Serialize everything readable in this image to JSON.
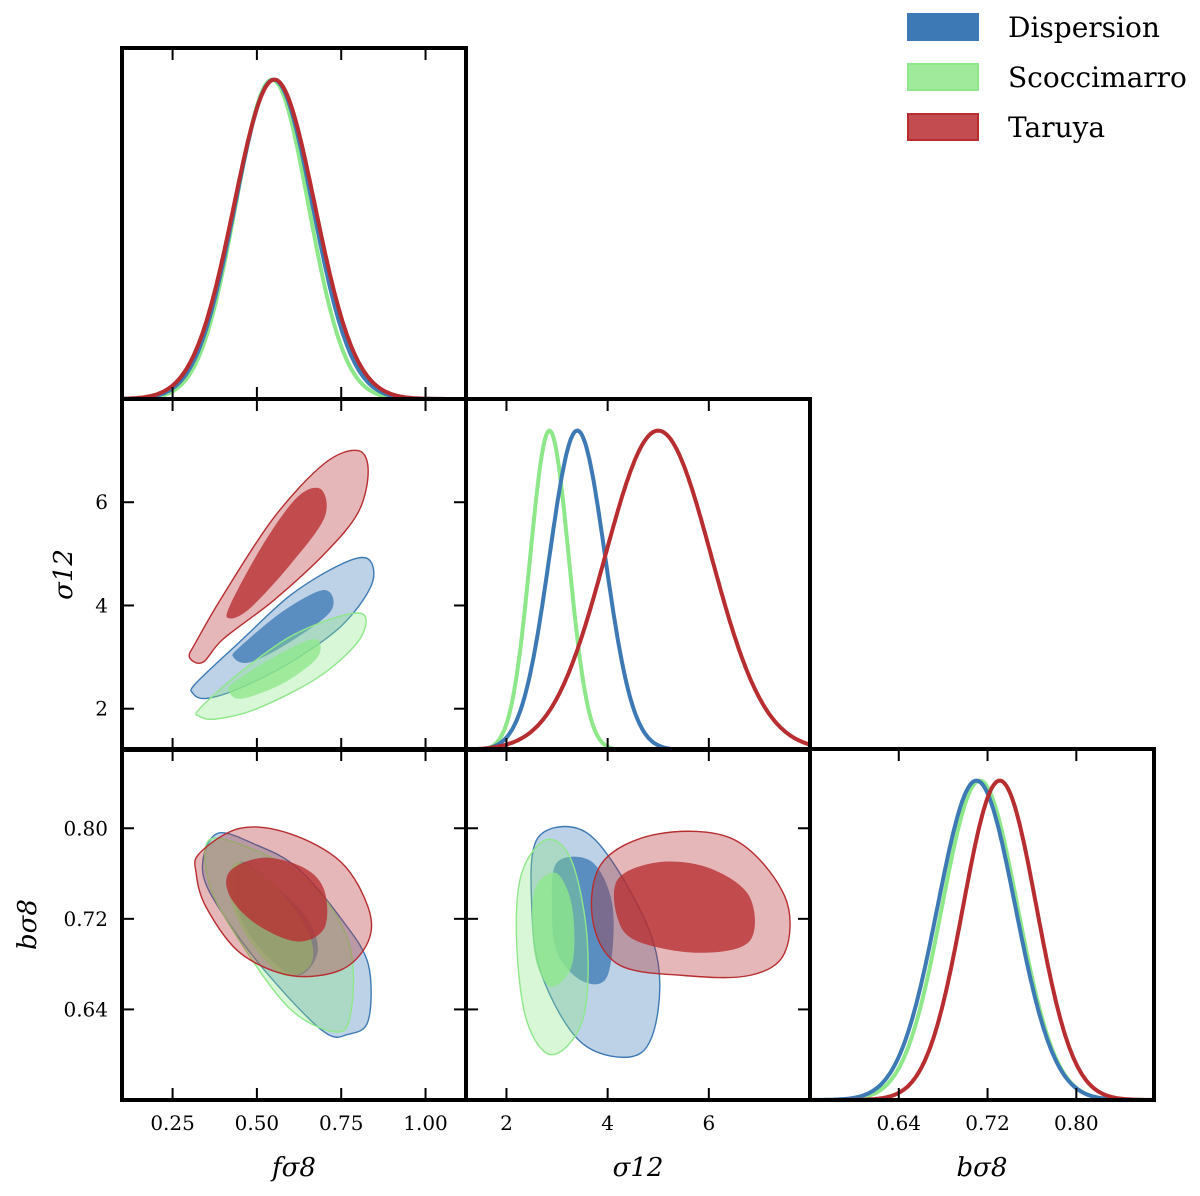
{
  "chart_data": {
    "type": "corner",
    "colors": {
      "Dispersion": "#3d7ab5",
      "Scoccimarro": "#8ee88a",
      "Taruya": "#b72d30"
    },
    "legend": {
      "placement": "top-right",
      "entries": [
        "Dispersion",
        "Scoccimarro",
        "Taruya"
      ]
    },
    "parameters": [
      {
        "key": "fs8",
        "label": "fσ8",
        "range": [
          0.1,
          1.12
        ],
        "ticks": [
          0.25,
          0.5,
          0.75,
          1.0
        ],
        "tick_labels": [
          "0.25",
          "0.50",
          "0.75",
          "1.00"
        ]
      },
      {
        "key": "s12",
        "label": "σ12",
        "range": [
          1.2,
          8.0
        ],
        "ticks": [
          2,
          4,
          6
        ],
        "tick_labels": [
          "2",
          "4",
          "6"
        ]
      },
      {
        "key": "bs8",
        "label": "bσ8",
        "range": [
          0.56,
          0.87
        ],
        "ticks": [
          0.64,
          0.72,
          0.8
        ],
        "tick_labels": [
          "0.64",
          "0.72",
          "0.80"
        ]
      }
    ],
    "marginals": {
      "fs8": [
        {
          "name": "Dispersion",
          "mean": 0.55,
          "sd": 0.115
        },
        {
          "name": "Scoccimarro",
          "mean": 0.545,
          "sd": 0.108
        },
        {
          "name": "Taruya",
          "mean": 0.552,
          "sd": 0.12
        }
      ],
      "s12": [
        {
          "name": "Dispersion",
          "mean": 3.4,
          "sd": 0.55
        },
        {
          "name": "Scoccimarro",
          "mean": 2.85,
          "sd": 0.38
        },
        {
          "name": "Taruya",
          "mean": 5.0,
          "sd": 1.05
        }
      ],
      "bs8": [
        {
          "name": "Dispersion",
          "mean": 0.71,
          "sd": 0.035
        },
        {
          "name": "Scoccimarro",
          "mean": 0.713,
          "sd": 0.034
        },
        {
          "name": "Taruya",
          "mean": 0.731,
          "sd": 0.033
        }
      ]
    },
    "contours": [
      {
        "panel": "s12_vs_fs8",
        "name": "Taruya",
        "level": "95%",
        "points": [
          [
            0.32,
            3.3
          ],
          [
            0.4,
            4.2
          ],
          [
            0.55,
            5.7
          ],
          [
            0.7,
            6.75
          ],
          [
            0.8,
            7.0
          ],
          [
            0.83,
            6.6
          ],
          [
            0.8,
            5.8
          ],
          [
            0.7,
            5.0
          ],
          [
            0.55,
            4.1
          ],
          [
            0.4,
            3.35
          ],
          [
            0.34,
            2.9
          ],
          [
            0.3,
            3.0
          ]
        ]
      },
      {
        "panel": "s12_vs_fs8",
        "name": "Taruya",
        "level": "68%",
        "points": [
          [
            0.42,
            4.0
          ],
          [
            0.52,
            5.2
          ],
          [
            0.62,
            6.1
          ],
          [
            0.69,
            6.25
          ],
          [
            0.7,
            5.7
          ],
          [
            0.6,
            4.8
          ],
          [
            0.48,
            3.95
          ],
          [
            0.42,
            3.75
          ]
        ]
      },
      {
        "panel": "s12_vs_fs8",
        "name": "Dispersion",
        "level": "95%",
        "points": [
          [
            0.32,
            2.5
          ],
          [
            0.45,
            3.3
          ],
          [
            0.6,
            4.2
          ],
          [
            0.75,
            4.8
          ],
          [
            0.83,
            4.9
          ],
          [
            0.84,
            4.4
          ],
          [
            0.75,
            3.6
          ],
          [
            0.6,
            2.9
          ],
          [
            0.45,
            2.4
          ],
          [
            0.35,
            2.2
          ],
          [
            0.31,
            2.3
          ]
        ]
      },
      {
        "panel": "s12_vs_fs8",
        "name": "Dispersion",
        "level": "68%",
        "points": [
          [
            0.45,
            3.2
          ],
          [
            0.58,
            3.9
          ],
          [
            0.7,
            4.3
          ],
          [
            0.72,
            3.9
          ],
          [
            0.6,
            3.3
          ],
          [
            0.48,
            2.9
          ],
          [
            0.43,
            3.0
          ]
        ]
      },
      {
        "panel": "s12_vs_fs8",
        "name": "Scoccimarro",
        "level": "95%",
        "points": [
          [
            0.33,
            2.0
          ],
          [
            0.45,
            2.7
          ],
          [
            0.6,
            3.4
          ],
          [
            0.75,
            3.8
          ],
          [
            0.82,
            3.8
          ],
          [
            0.8,
            3.3
          ],
          [
            0.68,
            2.6
          ],
          [
            0.5,
            2.0
          ],
          [
            0.38,
            1.8
          ],
          [
            0.33,
            1.85
          ]
        ]
      },
      {
        "panel": "s12_vs_fs8",
        "name": "Scoccimarro",
        "level": "68%",
        "points": [
          [
            0.43,
            2.5
          ],
          [
            0.55,
            3.0
          ],
          [
            0.67,
            3.35
          ],
          [
            0.68,
            3.0
          ],
          [
            0.58,
            2.5
          ],
          [
            0.46,
            2.2
          ],
          [
            0.42,
            2.3
          ]
        ]
      },
      {
        "panel": "bs8_vs_fs8",
        "name": "Dispersion",
        "level": "95%",
        "points": [
          [
            0.38,
            0.795
          ],
          [
            0.5,
            0.785
          ],
          [
            0.62,
            0.765
          ],
          [
            0.75,
            0.72
          ],
          [
            0.83,
            0.68
          ],
          [
            0.83,
            0.63
          ],
          [
            0.77,
            0.618
          ],
          [
            0.7,
            0.62
          ],
          [
            0.55,
            0.665
          ],
          [
            0.42,
            0.715
          ],
          [
            0.34,
            0.76
          ]
        ]
      },
      {
        "panel": "bs8_vs_fs8",
        "name": "Dispersion",
        "level": "68%",
        "points": [
          [
            0.45,
            0.77
          ],
          [
            0.55,
            0.75
          ],
          [
            0.65,
            0.72
          ],
          [
            0.68,
            0.69
          ],
          [
            0.62,
            0.67
          ],
          [
            0.52,
            0.69
          ],
          [
            0.44,
            0.73
          ]
        ]
      },
      {
        "panel": "bs8_vs_fs8",
        "name": "Scoccimarro",
        "level": "95%",
        "points": [
          [
            0.36,
            0.79
          ],
          [
            0.5,
            0.78
          ],
          [
            0.62,
            0.76
          ],
          [
            0.72,
            0.73
          ],
          [
            0.78,
            0.69
          ],
          [
            0.78,
            0.64
          ],
          [
            0.74,
            0.62
          ],
          [
            0.6,
            0.64
          ],
          [
            0.45,
            0.7
          ],
          [
            0.36,
            0.75
          ]
        ]
      },
      {
        "panel": "bs8_vs_fs8",
        "name": "Scoccimarro",
        "level": "68%",
        "points": [
          [
            0.44,
            0.77
          ],
          [
            0.55,
            0.75
          ],
          [
            0.65,
            0.71
          ],
          [
            0.66,
            0.68
          ],
          [
            0.58,
            0.67
          ],
          [
            0.48,
            0.7
          ],
          [
            0.42,
            0.74
          ]
        ]
      },
      {
        "panel": "bs8_vs_fs8",
        "name": "Taruya",
        "level": "95%",
        "points": [
          [
            0.33,
            0.778
          ],
          [
            0.45,
            0.8
          ],
          [
            0.6,
            0.795
          ],
          [
            0.75,
            0.77
          ],
          [
            0.83,
            0.73
          ],
          [
            0.83,
            0.7
          ],
          [
            0.75,
            0.675
          ],
          [
            0.6,
            0.67
          ],
          [
            0.45,
            0.69
          ],
          [
            0.35,
            0.73
          ],
          [
            0.32,
            0.76
          ]
        ]
      },
      {
        "panel": "bs8_vs_fs8",
        "name": "Taruya",
        "level": "68%",
        "points": [
          [
            0.42,
            0.762
          ],
          [
            0.52,
            0.774
          ],
          [
            0.64,
            0.765
          ],
          [
            0.7,
            0.745
          ],
          [
            0.7,
            0.712
          ],
          [
            0.62,
            0.7
          ],
          [
            0.5,
            0.715
          ],
          [
            0.42,
            0.74
          ]
        ]
      },
      {
        "panel": "bs8_vs_s12",
        "name": "Dispersion",
        "level": "95%",
        "points": [
          [
            2.6,
            0.79
          ],
          [
            3.4,
            0.8
          ],
          [
            4.1,
            0.77
          ],
          [
            4.9,
            0.7
          ],
          [
            5.0,
            0.64
          ],
          [
            4.6,
            0.6
          ],
          [
            3.5,
            0.61
          ],
          [
            2.7,
            0.67
          ],
          [
            2.5,
            0.73
          ]
        ]
      },
      {
        "panel": "bs8_vs_s12",
        "name": "Dispersion",
        "level": "68%",
        "points": [
          [
            3.0,
            0.77
          ],
          [
            3.7,
            0.77
          ],
          [
            4.1,
            0.73
          ],
          [
            4.0,
            0.67
          ],
          [
            3.5,
            0.665
          ],
          [
            3.0,
            0.69
          ],
          [
            2.9,
            0.73
          ]
        ]
      },
      {
        "panel": "bs8_vs_s12",
        "name": "Scoccimarro",
        "level": "95%",
        "points": [
          [
            2.3,
            0.76
          ],
          [
            2.8,
            0.79
          ],
          [
            3.3,
            0.77
          ],
          [
            3.6,
            0.7
          ],
          [
            3.5,
            0.63
          ],
          [
            2.9,
            0.6
          ],
          [
            2.4,
            0.63
          ],
          [
            2.2,
            0.7
          ]
        ]
      },
      {
        "panel": "bs8_vs_s12",
        "name": "Scoccimarro",
        "level": "68%",
        "points": [
          [
            2.6,
            0.75
          ],
          [
            3.0,
            0.76
          ],
          [
            3.3,
            0.73
          ],
          [
            3.3,
            0.68
          ],
          [
            2.9,
            0.66
          ],
          [
            2.6,
            0.68
          ],
          [
            2.5,
            0.72
          ]
        ]
      },
      {
        "panel": "bs8_vs_s12",
        "name": "Taruya",
        "level": "95%",
        "points": [
          [
            3.9,
            0.77
          ],
          [
            5.0,
            0.795
          ],
          [
            6.5,
            0.79
          ],
          [
            7.5,
            0.74
          ],
          [
            7.5,
            0.69
          ],
          [
            6.8,
            0.67
          ],
          [
            5.5,
            0.67
          ],
          [
            4.2,
            0.68
          ],
          [
            3.7,
            0.72
          ]
        ]
      },
      {
        "panel": "bs8_vs_s12",
        "name": "Taruya",
        "level": "68%",
        "points": [
          [
            4.2,
            0.755
          ],
          [
            5.0,
            0.77
          ],
          [
            6.0,
            0.765
          ],
          [
            6.8,
            0.74
          ],
          [
            6.8,
            0.7
          ],
          [
            5.8,
            0.69
          ],
          [
            4.6,
            0.7
          ],
          [
            4.2,
            0.72
          ]
        ]
      }
    ]
  }
}
